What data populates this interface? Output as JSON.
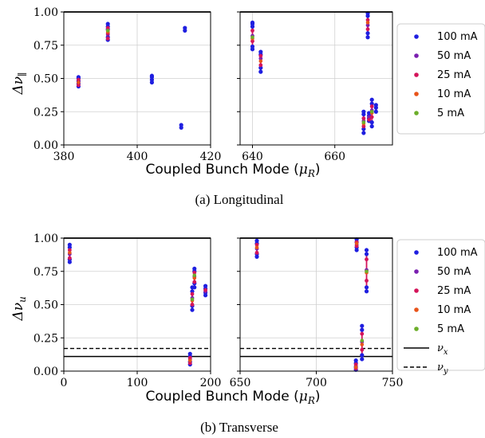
{
  "colors": {
    "100 mA": "#1f1fe0",
    "50 mA": "#7a1fb0",
    "25 mA": "#d4145a",
    "10 mA": "#e8541a",
    "5 mA": "#6cae2a",
    "grid": "#d0d0d0"
  },
  "chart_data": [
    {
      "id": "a",
      "type": "scatter",
      "caption": "(a)  Longitudinal",
      "xlabel": "Coupled Bunch Mode (",
      "xlabel_sym": "μ",
      "xlabel_sub": "R",
      "xlabel_end": ")",
      "ylabel": "Δν",
      "ylabel_sub": "∥",
      "ylim": [
        0,
        1.0
      ],
      "yticks": [
        "0.00",
        "0.25",
        "0.50",
        "0.75",
        "1.00"
      ],
      "yvals": [
        0,
        0.25,
        0.5,
        0.75,
        1.0
      ],
      "legend": [
        "100 mA",
        "50 mA",
        "25 mA",
        "10 mA",
        "5 mA"
      ],
      "panels": [
        {
          "xlim": [
            380,
            420
          ],
          "xticks": [
            "380",
            "400",
            "420"
          ],
          "xvals": [
            380,
            400,
            420
          ],
          "clusters": [
            {
              "x": 384,
              "y100": [
                0.44,
                0.46,
                0.48,
                0.5,
                0.51
              ],
              "y50": [
                0.47
              ],
              "y25": [
                0.45,
                0.49
              ],
              "y10": [
                0.47
              ],
              "y5": []
            },
            {
              "x": 392,
              "y100": [
                0.79,
                0.81,
                0.87,
                0.89,
                0.91
              ],
              "y50": [
                0.83,
                0.86
              ],
              "y25": [
                0.8,
                0.84,
                0.88
              ],
              "y10": [
                0.85
              ],
              "y5": [
                0.86
              ]
            },
            {
              "x": 404,
              "y100": [
                0.47,
                0.49,
                0.51,
                0.52
              ],
              "y50": [],
              "y25": [],
              "y10": [],
              "y5": []
            },
            {
              "x": 412,
              "y100": [
                0.13,
                0.15
              ],
              "y50": [],
              "y25": [],
              "y10": [],
              "y5": []
            },
            {
              "x": 413,
              "y100": [
                0.86,
                0.88
              ],
              "y50": [],
              "y25": [],
              "y10": [],
              "y5": []
            }
          ]
        },
        {
          "xlim": [
            637,
            674
          ],
          "xticks": [
            "640",
            "660"
          ],
          "xvals": [
            640,
            660
          ],
          "clusters": [
            {
              "x": 640,
              "y100": [
                0.72,
                0.74,
                0.89,
                0.91,
                0.92
              ],
              "y50": [
                0.82
              ],
              "y25": [
                0.78,
                0.86
              ],
              "y10": [
                0.8
              ],
              "y5": [
                0.81
              ]
            },
            {
              "x": 642,
              "y100": [
                0.55,
                0.58,
                0.68,
                0.7
              ],
              "y50": [
                0.65
              ],
              "y25": [
                0.6,
                0.67
              ],
              "y10": [
                0.63
              ],
              "y5": []
            },
            {
              "x": 667,
              "y100": [
                0.09,
                0.12,
                0.23,
                0.25
              ],
              "y50": [
                0.18
              ],
              "y25": [
                0.14,
                0.2
              ],
              "y10": [
                0.16
              ],
              "y5": [
                0.17
              ]
            },
            {
              "x": 668,
              "y100": [
                0.81,
                0.84,
                0.97,
                0.99
              ],
              "y50": [
                0.9
              ],
              "y25": [
                0.87,
                0.94
              ],
              "y10": [
                0.92
              ],
              "y5": []
            },
            {
              "x": 668.3,
              "y100": [
                0.18,
                0.2,
                0.22,
                0.24
              ],
              "y50": [
                0.21
              ],
              "y25": [
                0.19
              ],
              "y10": [],
              "y5": []
            },
            {
              "x": 669,
              "y100": [
                0.14,
                0.17,
                0.31,
                0.34
              ],
              "y50": [
                0.26
              ],
              "y25": [
                0.21,
                0.29
              ],
              "y10": [
                0.24
              ],
              "y5": [
                0.25
              ]
            },
            {
              "x": 670,
              "y100": [
                0.25,
                0.28,
                0.3
              ],
              "y50": [],
              "y25": [],
              "y10": [],
              "y5": []
            }
          ]
        }
      ]
    },
    {
      "id": "b",
      "type": "scatter",
      "caption": "(b)  Transverse",
      "xlabel": "Coupled Bunch Mode (",
      "xlabel_sym": "μ",
      "xlabel_sub": "R",
      "xlabel_end": ")",
      "ylabel": "Δν",
      "ylabel_sub": "u",
      "ylim": [
        0,
        1.0
      ],
      "yticks": [
        "0.00",
        "0.25",
        "0.50",
        "0.75",
        "1.00"
      ],
      "yvals": [
        0,
        0.25,
        0.5,
        0.75,
        1.0
      ],
      "hlines": [
        {
          "name": "ν_x",
          "y": 0.11,
          "style": "solid"
        },
        {
          "name": "ν_y",
          "y": 0.17,
          "style": "dashed"
        }
      ],
      "legend": [
        "100 mA",
        "50 mA",
        "25 mA",
        "10 mA",
        "5 mA"
      ],
      "legend_lines": [
        {
          "sym": "ν",
          "sub": "x",
          "style": "solid"
        },
        {
          "sym": "ν",
          "sub": "y",
          "style": "dashed"
        }
      ],
      "panels": [
        {
          "xlim": [
            0,
            200
          ],
          "xticks": [
            "0",
            "100",
            "200"
          ],
          "xvals": [
            0,
            100,
            200
          ],
          "clusters": [
            {
              "x": 8,
              "y100": [
                0.82,
                0.84,
                0.93,
                0.95
              ],
              "y50": [
                0.88
              ],
              "y25": [
                0.85,
                0.91
              ],
              "y10": [
                0.89
              ],
              "y5": []
            },
            {
              "x": 172,
              "y100": [
                0.05,
                0.07,
                0.11,
                0.13
              ],
              "y50": [
                0.09
              ],
              "y25": [
                0.06,
                0.1
              ],
              "y10": [
                0.08
              ],
              "y5": []
            },
            {
              "x": 175,
              "y100": [
                0.46,
                0.49,
                0.6,
                0.63
              ],
              "y50": [
                0.55
              ],
              "y25": [
                0.5,
                0.58
              ],
              "y10": [
                0.53
              ],
              "y5": [
                0.54
              ]
            },
            {
              "x": 178,
              "y100": [
                0.63,
                0.66,
                0.75,
                0.77
              ],
              "y50": [
                0.71
              ],
              "y25": [
                0.67,
                0.74
              ],
              "y10": [
                0.7
              ],
              "y5": [
                0.72
              ]
            },
            {
              "x": 193,
              "y100": [
                0.57,
                0.59,
                0.62,
                0.64
              ],
              "y50": [
                0.6
              ],
              "y25": [
                0.61
              ],
              "y10": [],
              "y5": []
            }
          ]
        },
        {
          "xlim": [
            650,
            750
          ],
          "xticks": [
            "650",
            "700",
            "750"
          ],
          "xvals": [
            650,
            700,
            750
          ],
          "clusters": [
            {
              "x": 661,
              "y100": [
                0.86,
                0.88,
                0.96,
                0.98
              ],
              "y50": [
                0.92
              ],
              "y25": [
                0.89,
                0.95
              ],
              "y10": [
                0.93
              ],
              "y5": []
            },
            {
              "x": 726,
              "y100": [
                0.01,
                0.03,
                0.06,
                0.08
              ],
              "y50": [
                0.04
              ],
              "y25": [
                0.02,
                0.05
              ],
              "y10": [
                0.03
              ],
              "y5": []
            },
            {
              "x": 726.5,
              "y100": [
                0.91,
                0.93,
                0.97,
                0.99
              ],
              "y50": [
                0.95
              ],
              "y25": [
                0.94,
                0.97
              ],
              "y10": [
                0.96
              ],
              "y5": []
            },
            {
              "x": 730,
              "y100": [
                0.09,
                0.12,
                0.31,
                0.34
              ],
              "y50": [
                0.22
              ],
              "y25": [
                0.16,
                0.28
              ],
              "y10": [
                0.2
              ],
              "y5": [
                0.23
              ]
            },
            {
              "x": 733,
              "y100": [
                0.6,
                0.63,
                0.88,
                0.91
              ],
              "y50": [
                0.76
              ],
              "y25": [
                0.68,
                0.84
              ],
              "y10": [
                0.74
              ],
              "y5": [
                0.75
              ]
            }
          ]
        }
      ]
    }
  ]
}
